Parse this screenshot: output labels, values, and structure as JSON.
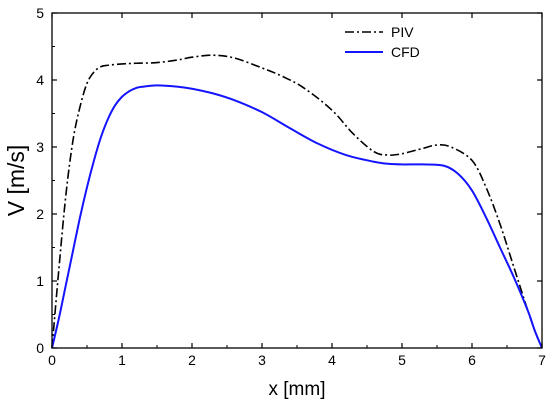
{
  "chart_data": {
    "type": "line",
    "title": "",
    "xlabel": "x [mm]",
    "ylabel": "V [m/s]",
    "xlim": [
      0,
      7
    ],
    "ylim": [
      0,
      5
    ],
    "xticks": [
      0,
      1,
      2,
      3,
      4,
      5,
      6,
      7
    ],
    "yticks": [
      0,
      1,
      2,
      3,
      4,
      5
    ],
    "grid": false,
    "legend_position": "top-right",
    "series": [
      {
        "name": "PIV",
        "color": "#000000",
        "line_style": "dash-dot",
        "x": [
          0,
          0.1,
          0.2,
          0.3,
          0.4,
          0.5,
          0.6,
          0.7,
          0.8,
          1.0,
          1.2,
          1.5,
          1.8,
          2.0,
          2.3,
          2.6,
          3.0,
          3.3,
          3.6,
          4.0,
          4.3,
          4.6,
          4.8,
          5.0,
          5.3,
          5.5,
          5.7,
          6.0,
          6.2,
          6.4,
          6.6,
          6.8,
          6.9,
          7.0
        ],
        "y": [
          0,
          1.2,
          2.3,
          3.1,
          3.6,
          3.95,
          4.12,
          4.2,
          4.22,
          4.24,
          4.25,
          4.26,
          4.3,
          4.34,
          4.37,
          4.33,
          4.18,
          4.05,
          3.88,
          3.55,
          3.2,
          2.93,
          2.88,
          2.9,
          2.98,
          3.03,
          3.0,
          2.8,
          2.4,
          1.85,
          1.2,
          0.55,
          0.25,
          0
        ]
      },
      {
        "name": "CFD",
        "color": "#1414ff",
        "line_style": "solid",
        "x": [
          0,
          0.1,
          0.2,
          0.3,
          0.4,
          0.5,
          0.6,
          0.7,
          0.8,
          0.9,
          1.0,
          1.1,
          1.2,
          1.3,
          1.5,
          1.8,
          2.0,
          2.3,
          2.6,
          3.0,
          3.4,
          3.8,
          4.2,
          4.6,
          4.8,
          5.0,
          5.3,
          5.6,
          5.8,
          6.0,
          6.2,
          6.4,
          6.6,
          6.8,
          6.9,
          7.0
        ],
        "y": [
          0,
          0.45,
          0.95,
          1.45,
          1.95,
          2.4,
          2.8,
          3.15,
          3.42,
          3.62,
          3.75,
          3.83,
          3.88,
          3.9,
          3.92,
          3.9,
          3.87,
          3.8,
          3.7,
          3.52,
          3.28,
          3.05,
          2.88,
          2.78,
          2.75,
          2.74,
          2.74,
          2.72,
          2.6,
          2.35,
          1.95,
          1.5,
          1.05,
          0.55,
          0.25,
          0
        ]
      }
    ]
  }
}
